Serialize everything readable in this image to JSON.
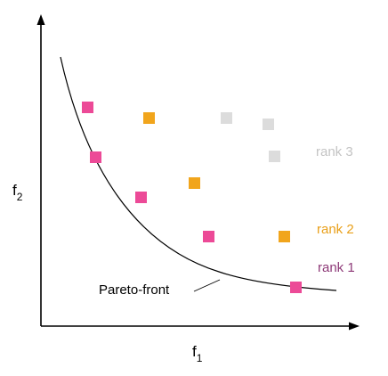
{
  "axes": {
    "x_label": "f",
    "x_subscript": "1",
    "y_label": "f",
    "y_subscript": "2"
  },
  "labels": {
    "rank3": "rank 3",
    "rank2": "rank 2",
    "rank1": "rank 1",
    "pareto_front": "Pareto-front"
  },
  "colors": {
    "rank1": "#ec4a97",
    "rank2": "#f1a51c",
    "rank3": "#dcdcdc",
    "rank1_label": "#8e3a78",
    "rank2_label": "#e9a01a",
    "rank3_label": "#c4c4c4",
    "axis": "#000000"
  }
}
